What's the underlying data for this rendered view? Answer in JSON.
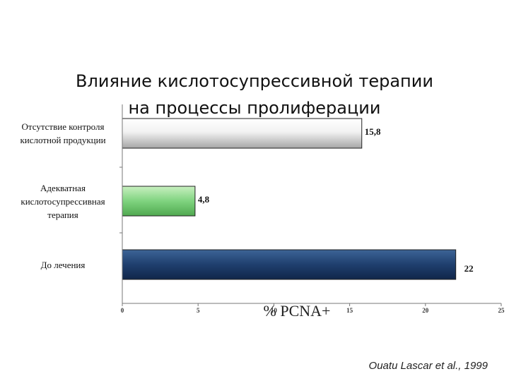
{
  "slide": {
    "title_line1": "Влияние кислотосупрессивной терапии",
    "title_line2": "на процессы пролиферации",
    "citation": "Ouatu Lascar et al., 1999"
  },
  "chart_data": {
    "type": "bar",
    "orientation": "horizontal",
    "categories": [
      "Отсутствие контроля кислотной продукции",
      "Адекватная кислотосупрессивная терапия",
      "До лечения"
    ],
    "category_lines": [
      [
        "Отсутствие контроля",
        "кислотной продукции"
      ],
      [
        "Адекватная",
        "кислотосупрессивная",
        "терапия"
      ],
      [
        "До лечения"
      ]
    ],
    "values": [
      15.8,
      4.8,
      22
    ],
    "value_labels": [
      "15,8",
      "4,8",
      "22"
    ],
    "bar_colors": [
      "#d9d9d9",
      "#7fd37f",
      "#1f3f6e"
    ],
    "xlabel": "% PCNA+",
    "xlim": [
      0,
      25
    ],
    "xticks": [
      0,
      5,
      10,
      15,
      20,
      25
    ],
    "xtick_labels": [
      "0",
      "5",
      "10",
      "15",
      "20",
      "25"
    ],
    "grid": false
  }
}
